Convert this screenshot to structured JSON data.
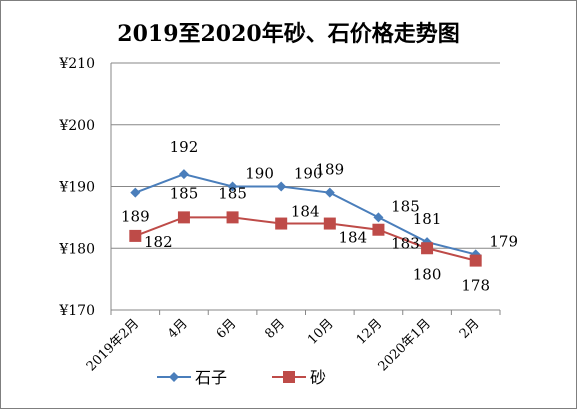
{
  "chart_data": {
    "type": "line",
    "title": "2019至2020年砂、石价格走势图",
    "categories": [
      "2019年2月",
      "4月",
      "6月",
      "8月",
      "10月",
      "12月",
      "2020年1月",
      "2月"
    ],
    "series": [
      {
        "name": "石子",
        "values": [
          189,
          192,
          190,
          190,
          189,
          185,
          181,
          179
        ],
        "color": "#4a7ebb",
        "marker": "diamond"
      },
      {
        "name": "砂",
        "values": [
          182,
          185,
          185,
          184,
          184,
          183,
          180,
          178
        ],
        "color": "#be4b48",
        "marker": "square"
      }
    ],
    "y_ticks": [
      "¥210",
      "¥200",
      "¥190",
      "¥180",
      "¥170"
    ],
    "ylim": [
      170,
      210
    ],
    "grid": "horizontal",
    "legend": "bottom"
  }
}
